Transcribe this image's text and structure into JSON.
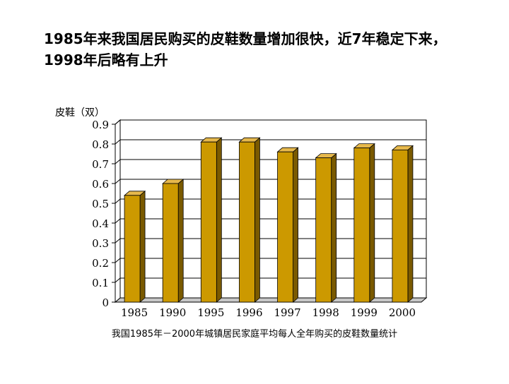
{
  "slide": {
    "title": "1985年来我国居民购买的皮鞋数量增加很快，近7年稳定下来，1998年后略有上升",
    "caption": "我国1985年－2000年城镇居民家庭平均每人全年购买的皮鞋数量统计"
  },
  "chart_data": {
    "type": "bar",
    "title": "",
    "ylabel": "皮鞋（双）",
    "xlabel": "",
    "categories": [
      "1985",
      "1990",
      "1995",
      "1996",
      "1997",
      "1998",
      "1999",
      "2000"
    ],
    "values": [
      0.54,
      0.6,
      0.81,
      0.81,
      0.76,
      0.73,
      0.78,
      0.77
    ],
    "ylim": [
      0,
      0.9
    ],
    "yticks": [
      "0",
      "0.1",
      "0.2",
      "0.3",
      "0.4",
      "0.5",
      "0.6",
      "0.7",
      "0.8",
      "0.9"
    ],
    "grid": true,
    "legend": "none",
    "colors": {
      "bar_front": "#CC9900",
      "bar_side": "#7A5A00",
      "bar_top": "#E6B84C",
      "grid": "#000000"
    }
  }
}
